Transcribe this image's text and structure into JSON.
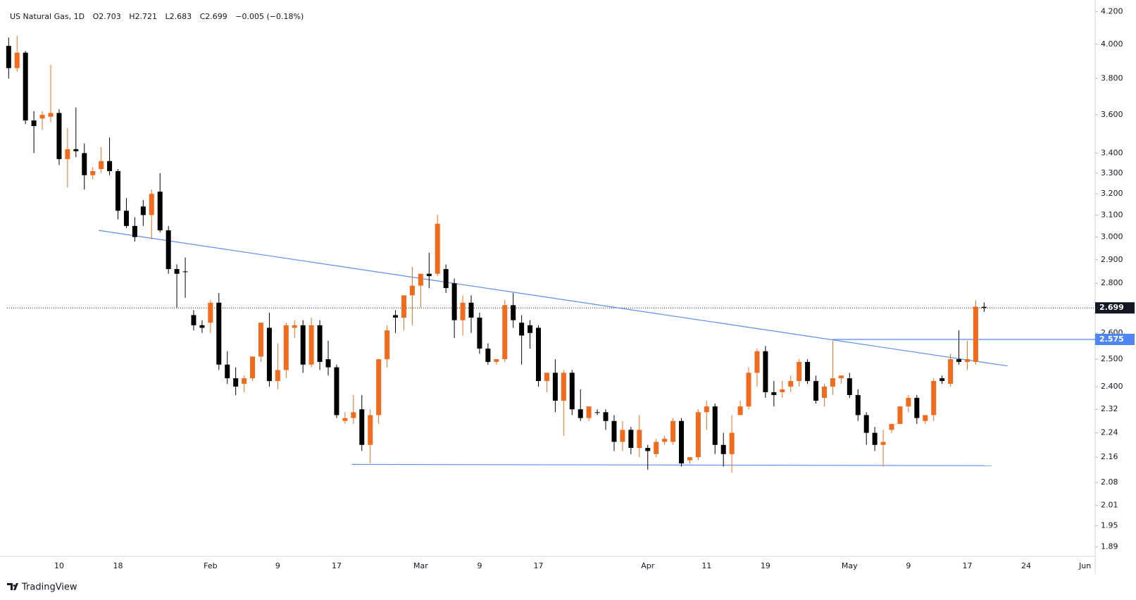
{
  "chart_data": {
    "type": "candlestick",
    "title": "US Natural Gas, 1D",
    "ohlc_legend": [
      "O2.703",
      "H2.721",
      "L2.683",
      "C2.699",
      "−0.005 (−0.18%)"
    ],
    "categories": [
      null,
      null,
      null,
      null,
      null,
      null,
      "10",
      null,
      null,
      null,
      null,
      null,
      null,
      "18",
      null,
      null,
      null,
      null,
      null,
      null,
      null,
      null,
      null,
      null,
      "Feb",
      null,
      null,
      null,
      null,
      null,
      null,
      null,
      "9",
      null,
      null,
      null,
      null,
      null,
      null,
      "17",
      null,
      null,
      null,
      null,
      null,
      null,
      null,
      null,
      null,
      "Mar",
      null,
      null,
      null,
      null,
      null,
      null,
      "9",
      null,
      null,
      null,
      null,
      null,
      null,
      "17",
      null,
      null,
      null,
      null,
      null,
      null,
      null,
      null,
      null,
      null,
      null,
      null,
      "Apr",
      null,
      null,
      null,
      null,
      null,
      null,
      "11",
      null,
      null,
      null,
      null,
      null,
      null,
      "19",
      null,
      null,
      null,
      null,
      null,
      null,
      null,
      null,
      null,
      "May",
      null,
      null,
      null,
      null,
      null,
      null,
      "9",
      null,
      null,
      null,
      null,
      null,
      null,
      "17",
      null,
      null,
      null,
      null,
      null,
      null,
      "24",
      null,
      null,
      null,
      null,
      null,
      null,
      "Jun"
    ],
    "open": [
      3.99,
      3.86,
      3.95,
      3.57,
      3.58,
      3.59,
      3.61,
      3.37,
      3.42,
      3.4,
      3.29,
      3.32,
      3.36,
      3.31,
      3.12,
      3.05,
      3.14,
      3.1,
      3.21,
      3.03,
      2.86,
      2.85,
      2.67,
      2.63,
      2.64,
      2.72,
      2.48,
      2.43,
      2.41,
      2.43,
      2.51,
      2.62,
      2.42,
      2.46,
      2.62,
      2.63,
      2.48,
      2.63,
      2.5,
      2.47,
      2.28,
      2.29,
      2.32,
      2.2,
      2.3,
      2.5,
      2.67,
      2.66,
      2.75,
      2.79,
      2.84,
      2.84,
      2.86,
      2.8,
      2.65,
      2.72,
      2.66,
      2.54,
      2.49,
      2.5,
      2.71,
      2.64,
      2.63,
      2.62,
      2.42,
      2.45,
      2.35,
      2.45,
      2.32,
      2.29,
      2.31,
      2.31,
      2.28,
      2.21,
      2.25,
      2.19,
      2.19,
      2.17,
      2.21,
      2.21,
      2.28,
      2.15,
      2.16,
      2.31,
      2.33,
      2.2,
      2.17,
      2.3,
      2.33,
      2.45,
      2.53,
      2.38,
      2.38,
      2.4,
      2.42,
      2.49,
      2.42,
      2.36,
      2.4,
      2.43,
      2.43,
      2.37,
      2.3,
      2.24,
      2.2,
      2.25,
      2.27,
      2.33,
      2.36,
      2.28,
      2.3,
      2.43,
      2.41,
      2.5,
      2.49,
      2.49,
      2.703,
      null,
      null,
      null,
      null,
      null,
      null,
      null,
      null,
      null,
      null,
      null,
      null
    ],
    "high": [
      4.04,
      4.05,
      3.96,
      3.62,
      3.62,
      3.88,
      3.63,
      3.53,
      3.64,
      3.45,
      3.33,
      3.43,
      3.48,
      3.32,
      3.18,
      3.09,
      3.17,
      3.22,
      3.3,
      3.05,
      2.88,
      2.91,
      2.69,
      2.65,
      2.73,
      2.76,
      2.53,
      2.47,
      2.44,
      2.51,
      2.64,
      2.68,
      2.56,
      2.64,
      2.65,
      2.65,
      2.66,
      2.65,
      2.57,
      2.48,
      2.31,
      2.37,
      2.37,
      2.32,
      2.5,
      2.63,
      2.69,
      2.75,
      2.87,
      2.84,
      2.93,
      3.1,
      2.88,
      2.82,
      2.75,
      2.75,
      2.68,
      2.56,
      2.5,
      2.73,
      2.76,
      2.67,
      2.65,
      2.63,
      2.45,
      2.5,
      2.46,
      2.46,
      2.39,
      2.33,
      2.32,
      2.32,
      2.3,
      2.28,
      2.26,
      2.3,
      2.2,
      2.22,
      2.23,
      2.29,
      2.29,
      2.16,
      2.32,
      2.35,
      2.34,
      2.24,
      2.3,
      2.35,
      2.47,
      2.54,
      2.55,
      2.42,
      2.42,
      2.44,
      2.5,
      2.5,
      2.44,
      2.41,
      2.57,
      2.44,
      2.45,
      2.39,
      2.31,
      2.26,
      2.25,
      2.27,
      2.33,
      2.37,
      2.37,
      2.3,
      2.43,
      2.44,
      2.52,
      2.61,
      2.57,
      2.73,
      2.721,
      null,
      null,
      null,
      null,
      null,
      null,
      null,
      null,
      null,
      null,
      null,
      null
    ],
    "low": [
      3.8,
      3.84,
      3.55,
      3.4,
      3.52,
      3.56,
      3.34,
      3.23,
      3.38,
      3.22,
      3.27,
      3.3,
      3.29,
      3.08,
      3.04,
      2.98,
      3.05,
      2.99,
      3.02,
      2.84,
      2.7,
      2.74,
      2.61,
      2.6,
      2.6,
      2.46,
      2.41,
      2.37,
      2.38,
      2.42,
      2.49,
      2.4,
      2.39,
      2.43,
      2.58,
      2.45,
      2.47,
      2.46,
      2.44,
      2.29,
      2.27,
      2.27,
      2.18,
      2.14,
      2.27,
      2.47,
      2.6,
      2.61,
      2.63,
      2.7,
      2.78,
      2.83,
      2.76,
      2.58,
      2.59,
      2.6,
      2.52,
      2.48,
      2.48,
      2.49,
      2.62,
      2.48,
      2.54,
      2.4,
      2.38,
      2.31,
      2.23,
      2.3,
      2.28,
      2.28,
      2.3,
      2.25,
      2.18,
      2.18,
      2.17,
      2.16,
      2.12,
      2.16,
      2.2,
      2.2,
      2.13,
      2.14,
      2.15,
      2.25,
      2.17,
      2.13,
      2.11,
      2.3,
      2.32,
      2.4,
      2.36,
      2.33,
      2.36,
      2.38,
      2.4,
      2.41,
      2.34,
      2.33,
      2.37,
      2.41,
      2.36,
      2.28,
      2.2,
      2.18,
      2.13,
      2.24,
      2.27,
      2.31,
      2.27,
      2.27,
      2.28,
      2.41,
      2.4,
      2.48,
      2.46,
      2.48,
      2.683,
      null,
      null,
      null,
      null,
      null,
      null,
      null,
      null,
      null,
      null,
      null,
      null
    ],
    "close": [
      3.86,
      3.95,
      3.57,
      3.54,
      3.6,
      3.61,
      3.37,
      3.42,
      3.41,
      3.29,
      3.31,
      3.36,
      3.31,
      3.12,
      3.05,
      3.0,
      3.1,
      3.2,
      3.03,
      2.86,
      2.84,
      2.85,
      2.63,
      2.62,
      2.72,
      2.48,
      2.43,
      2.4,
      2.43,
      2.51,
      2.64,
      2.42,
      2.46,
      2.63,
      2.63,
      2.48,
      2.63,
      2.49,
      2.47,
      2.3,
      2.29,
      2.31,
      2.2,
      2.3,
      2.5,
      2.61,
      2.66,
      2.75,
      2.79,
      2.84,
      2.83,
      3.06,
      2.78,
      2.65,
      2.72,
      2.66,
      2.54,
      2.49,
      2.5,
      2.71,
      2.65,
      2.59,
      2.6,
      2.42,
      2.45,
      2.35,
      2.45,
      2.32,
      2.29,
      2.33,
      2.31,
      2.28,
      2.21,
      2.25,
      2.19,
      2.25,
      2.18,
      2.21,
      2.22,
      2.28,
      2.14,
      2.16,
      2.31,
      2.33,
      2.2,
      2.17,
      2.24,
      2.33,
      2.45,
      2.53,
      2.38,
      2.37,
      2.39,
      2.42,
      2.49,
      2.42,
      2.35,
      2.4,
      2.43,
      2.44,
      2.37,
      2.3,
      2.24,
      2.2,
      2.21,
      2.27,
      2.33,
      2.36,
      2.29,
      2.3,
      2.42,
      2.42,
      2.5,
      2.49,
      2.5,
      2.704,
      2.699,
      null,
      null,
      null,
      null,
      null,
      null,
      null,
      null,
      null,
      null,
      null,
      null
    ],
    "up_color": "#f26b1d",
    "down_color": "#000000",
    "log_scale": true,
    "ylim": [
      1.863,
      4.237
    ],
    "yticks": [
      {
        "value": 4.2,
        "label": "4.200"
      },
      {
        "value": 4.0,
        "label": "4.000"
      },
      {
        "value": 3.8,
        "label": "3.800"
      },
      {
        "value": 3.6,
        "label": "3.600"
      },
      {
        "value": 3.4,
        "label": "3.400"
      },
      {
        "value": 3.3,
        "label": "3.300"
      },
      {
        "value": 3.2,
        "label": "3.200"
      },
      {
        "value": 3.1,
        "label": "3.100"
      },
      {
        "value": 3.0,
        "label": "3.000"
      },
      {
        "value": 2.9,
        "label": "2.900"
      },
      {
        "value": 2.8,
        "label": "2.800"
      },
      {
        "value": 2.6,
        "label": "2.600"
      },
      {
        "value": 2.5,
        "label": "2.500"
      },
      {
        "value": 2.4,
        "label": "2.400"
      },
      2.32,
      2.24,
      2.16,
      2.08,
      2.01,
      1.95,
      1.89
    ],
    "trendlines": [
      {
        "x": [
          10.7,
          118.8
        ],
        "y": [
          3.03,
          2.475
        ],
        "color": "#5b8def"
      },
      {
        "x": [
          40.8,
          116.9
        ],
        "y": [
          2.137,
          2.133
        ],
        "color": "#5b8def"
      }
    ],
    "level": {
      "value": 2.575,
      "x_start": 98,
      "color": "#4f86f7"
    },
    "last_price": 2.699,
    "brand": "TradingView"
  }
}
